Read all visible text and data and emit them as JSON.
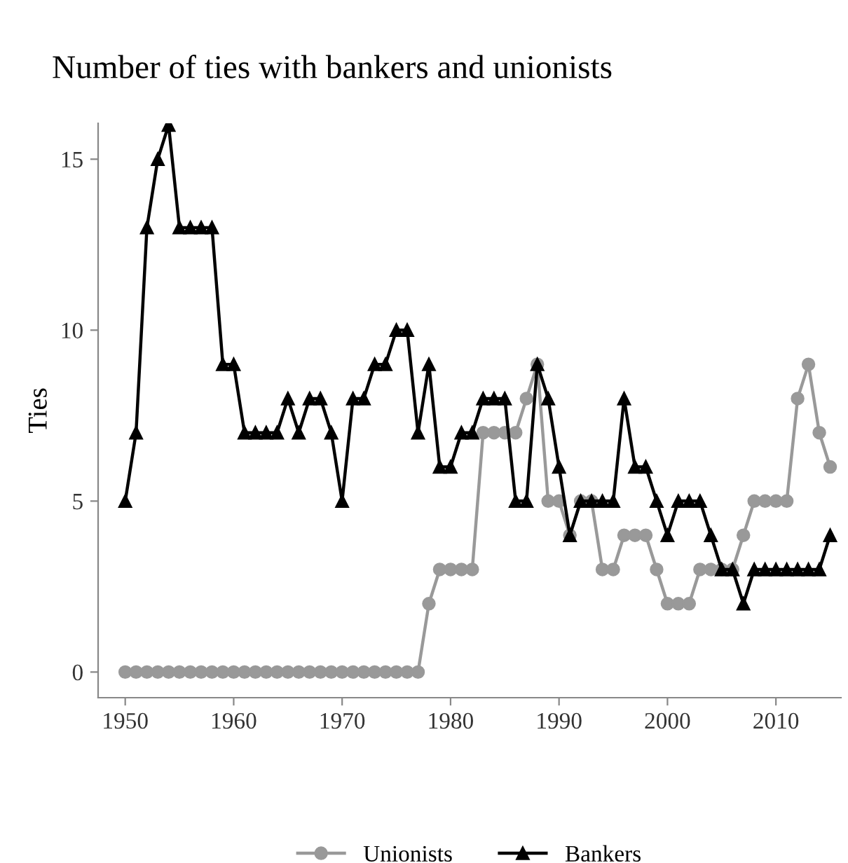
{
  "chart_data": {
    "type": "line",
    "title": "Number of ties with bankers and unionists",
    "ylabel": "Ties",
    "x": [
      1950,
      1951,
      1952,
      1953,
      1954,
      1955,
      1956,
      1957,
      1958,
      1959,
      1960,
      1961,
      1962,
      1963,
      1964,
      1965,
      1966,
      1967,
      1968,
      1969,
      1970,
      1971,
      1972,
      1973,
      1974,
      1975,
      1976,
      1977,
      1978,
      1979,
      1980,
      1981,
      1982,
      1983,
      1984,
      1985,
      1986,
      1987,
      1988,
      1989,
      1990,
      1991,
      1992,
      1993,
      1994,
      1995,
      1996,
      1997,
      1998,
      1999,
      2000,
      2001,
      2002,
      2003,
      2004,
      2005,
      2006,
      2007,
      2008,
      2009,
      2010,
      2011,
      2012,
      2013,
      2014,
      2015
    ],
    "series": [
      {
        "name": "Unionists",
        "color": "#999999",
        "marker": "circle",
        "values": [
          0,
          0,
          0,
          0,
          0,
          0,
          0,
          0,
          0,
          0,
          0,
          0,
          0,
          0,
          0,
          0,
          0,
          0,
          0,
          0,
          0,
          0,
          0,
          0,
          0,
          0,
          0,
          0,
          2,
          3,
          3,
          3,
          3,
          7,
          7,
          7,
          7,
          8,
          9,
          5,
          5,
          4,
          5,
          5,
          3,
          3,
          4,
          4,
          4,
          3,
          2,
          2,
          2,
          3,
          3,
          3,
          3,
          4,
          5,
          5,
          5,
          5,
          8,
          9,
          7,
          6
        ]
      },
      {
        "name": "Bankers",
        "color": "#000000",
        "marker": "triangle",
        "values": [
          5,
          7,
          13,
          15,
          16,
          13,
          13,
          13,
          13,
          9,
          9,
          7,
          7,
          7,
          7,
          8,
          7,
          8,
          8,
          7,
          5,
          8,
          8,
          9,
          9,
          10,
          10,
          7,
          9,
          6,
          6,
          7,
          7,
          8,
          8,
          8,
          5,
          5,
          9,
          8,
          6,
          4,
          5,
          5,
          5,
          5,
          8,
          6,
          6,
          5,
          4,
          5,
          5,
          5,
          4,
          3,
          3,
          2,
          3,
          3,
          3,
          3,
          3,
          3,
          3,
          4
        ]
      }
    ],
    "xlim": [
      1947.5,
      2016
    ],
    "xticks": [
      1950,
      1960,
      1970,
      1980,
      1990,
      2000,
      2010
    ],
    "ylim": [
      -0.75,
      16.05
    ],
    "yticks": [
      0,
      5,
      10,
      15
    ],
    "grid": false,
    "legend": "bottom",
    "line_style": "solid"
  }
}
